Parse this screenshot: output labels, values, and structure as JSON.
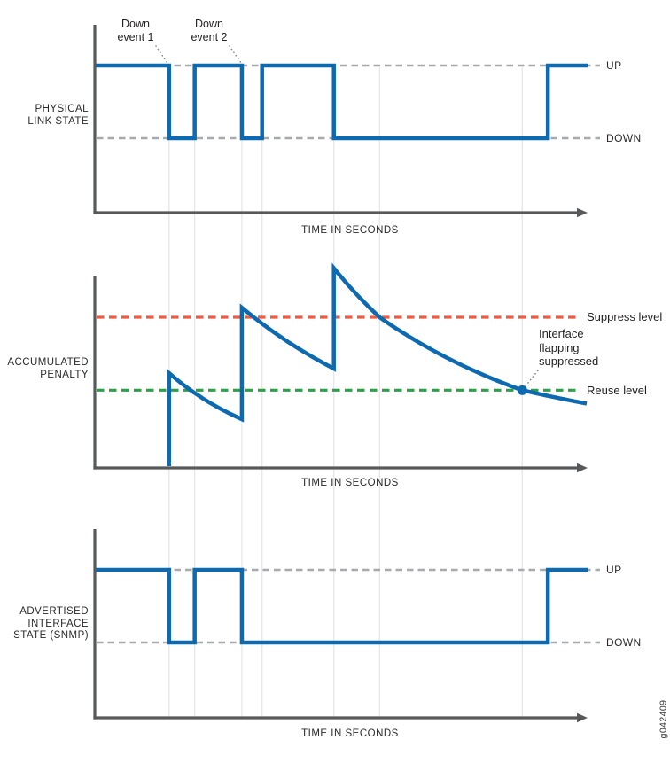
{
  "figure_id": "g042409",
  "colors": {
    "line_blue": "#0d6ab1",
    "suppress_red": "#f15a41",
    "reuse_green": "#2f9e48",
    "dash_gray": "#a7a9ac",
    "axis_gray": "#58595b",
    "grid_gray": "#e7e7e9",
    "leader_gray": "#808285"
  },
  "gridlines": {
    "event_times": [
      0.151,
      0.203,
      0.299,
      0.34,
      0.486
    ],
    "crossing_times": [
      0.579,
      0.869
    ]
  },
  "chart_data": [
    {
      "type": "step-line",
      "title": "PHYSICAL LINK STATE",
      "title_lines": [
        "PHYSICAL",
        "LINK STATE"
      ],
      "xlabel": "TIME IN SECONDS",
      "up_label": "UP",
      "down_label": "DOWN",
      "levels": [
        "UP",
        "DOWN"
      ],
      "x_range": [
        0,
        1
      ],
      "initial_state": "UP",
      "transitions": [
        {
          "t": 0.151,
          "to": "DOWN"
        },
        {
          "t": 0.203,
          "to": "UP"
        },
        {
          "t": 0.299,
          "to": "DOWN"
        },
        {
          "t": 0.34,
          "to": "UP"
        },
        {
          "t": 0.486,
          "to": "DOWN"
        },
        {
          "t": 0.921,
          "to": "UP"
        }
      ],
      "end_t": 1.0,
      "events": [
        {
          "t": 0.151,
          "label_lines": [
            "Down",
            "event 1"
          ]
        },
        {
          "t": 0.299,
          "label_lines": [
            "Down",
            "event 2"
          ]
        }
      ]
    },
    {
      "type": "line",
      "title": "ACCUMULATED PENALTY",
      "title_lines": [
        "ACCUMULATED",
        "PENALTY"
      ],
      "xlabel": "TIME IN SECONDS",
      "x_range": [
        0,
        1
      ],
      "y_unit": "penalty relative to suppress level = 1.0",
      "suppress_level": 1.0,
      "suppress_label": "Suppress level",
      "reuse_level": 0.51,
      "reuse_label": "Reuse level",
      "curve_segments": [
        {
          "type": "rise",
          "t": 0.151,
          "from": 0,
          "to": 0.625
        },
        {
          "type": "decay",
          "t0": 0.151,
          "v0": 0.625,
          "t1": 0.299,
          "v1": 0.315
        },
        {
          "type": "rise",
          "t": 0.299,
          "from": 0.315,
          "to": 1.065
        },
        {
          "type": "decay",
          "t0": 0.299,
          "v0": 1.065,
          "t1": 0.486,
          "v1": 0.655
        },
        {
          "type": "rise",
          "t": 0.486,
          "from": 0.655,
          "to": 1.33
        },
        {
          "type": "decay",
          "t0": 0.486,
          "v0": 1.33,
          "t1": 0.579,
          "v1": 1.0
        },
        {
          "type": "decay",
          "t0": 0.579,
          "v0": 1.0,
          "t1": 0.869,
          "v1": 0.51
        },
        {
          "type": "decay",
          "t0": 0.869,
          "v0": 0.51,
          "t1": 1.0,
          "v1": 0.42
        }
      ],
      "suppressed_point": {
        "t": 0.869,
        "v": 0.51,
        "label_lines": [
          "Interface",
          "flapping",
          "suppressed"
        ]
      }
    },
    {
      "type": "step-line",
      "title": "ADVERTISED INTERFACE STATE (SNMP)",
      "title_lines": [
        "ADVERTISED",
        "INTERFACE",
        "STATE (SNMP)"
      ],
      "xlabel": "TIME IN SECONDS",
      "up_label": "UP",
      "down_label": "DOWN",
      "levels": [
        "UP",
        "DOWN"
      ],
      "x_range": [
        0,
        1
      ],
      "initial_state": "UP",
      "transitions": [
        {
          "t": 0.151,
          "to": "DOWN"
        },
        {
          "t": 0.203,
          "to": "UP"
        },
        {
          "t": 0.299,
          "to": "DOWN"
        },
        {
          "t": 0.921,
          "to": "UP"
        }
      ],
      "end_t": 1.0
    }
  ]
}
